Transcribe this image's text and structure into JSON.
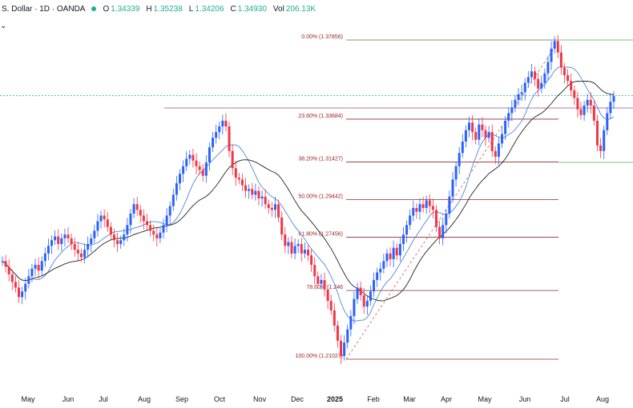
{
  "header": {
    "title": "S. Dollar · 1D · OANDA",
    "open_label": "O",
    "open_value": "1.34339",
    "high_label": "H",
    "high_value": "1.35238",
    "low_label": "L",
    "low_value": "1.34206",
    "close_label": "C",
    "close_value": "1.34930",
    "vol_label": "Vol",
    "vol_value": "206.13K",
    "collapse_icon": "chevron-down-icon"
  },
  "chart_data": {
    "type": "candlestick",
    "x_axis_labels": [
      "May",
      "Jun",
      "Jul",
      "Aug",
      "Sep",
      "Oct",
      "Nov",
      "Dec",
      "2025",
      "Feb",
      "Mar",
      "Apr",
      "May",
      "Jun",
      "Jul",
      "Aug"
    ],
    "fib_levels": [
      {
        "label": "0.00% (1.37856)",
        "value": 1.37856
      },
      {
        "label": "23.60% (1.33684)",
        "value": 1.33684
      },
      {
        "label": "38.20% (1.31427)",
        "value": 1.31427
      },
      {
        "label": "50.00% (1.29442)",
        "value": 1.29442
      },
      {
        "label": "61.80% (1.27456)",
        "value": 1.27456
      },
      {
        "label": "78.60% (1.246",
        "value": 1.2465
      },
      {
        "label": "100.00% (1.21027)",
        "value": 1.21027
      }
    ],
    "price_line": 1.3493,
    "close_series": [
      1.262,
      1.259,
      1.255,
      1.251,
      1.248,
      1.243,
      1.246,
      1.25,
      1.254,
      1.258,
      1.26,
      1.257,
      1.262,
      1.266,
      1.27,
      1.273,
      1.275,
      1.271,
      1.274,
      1.276,
      1.274,
      1.271,
      1.268,
      1.266,
      1.264,
      1.268,
      1.271,
      1.274,
      1.278,
      1.283,
      1.286,
      1.284,
      1.28,
      1.276,
      1.273,
      1.271,
      1.273,
      1.276,
      1.281,
      1.287,
      1.292,
      1.289,
      1.286,
      1.283,
      1.281,
      1.278,
      1.276,
      1.274,
      1.277,
      1.281,
      1.286,
      1.291,
      1.297,
      1.303,
      1.308,
      1.312,
      1.316,
      1.318,
      1.315,
      1.312,
      1.31,
      1.307,
      1.314,
      1.322,
      1.327,
      1.33,
      1.333,
      1.336,
      1.333,
      1.32,
      1.311,
      1.306,
      1.305,
      1.302,
      1.299,
      1.3,
      1.297,
      1.299,
      1.295,
      1.296,
      1.292,
      1.29,
      1.289,
      1.292,
      1.285,
      1.276,
      1.27,
      1.272,
      1.266,
      1.27,
      1.271,
      1.266,
      1.268,
      1.265,
      1.26,
      1.254,
      1.25,
      1.252,
      1.247,
      1.241,
      1.236,
      1.228,
      1.22,
      1.212,
      1.219,
      1.226,
      1.233,
      1.242,
      1.248,
      1.244,
      1.238,
      1.241,
      1.246,
      1.252,
      1.256,
      1.258,
      1.262,
      1.266,
      1.263,
      1.269,
      1.265,
      1.271,
      1.276,
      1.281,
      1.286,
      1.29,
      1.288,
      1.292,
      1.29,
      1.294,
      1.291,
      1.289,
      1.28,
      1.274,
      1.281,
      1.287,
      1.296,
      1.305,
      1.312,
      1.319,
      1.325,
      1.331,
      1.335,
      1.33,
      1.326,
      1.334,
      1.331,
      1.327,
      1.33,
      1.32,
      1.317,
      1.324,
      1.329,
      1.336,
      1.34,
      1.343,
      1.347,
      1.35,
      1.351,
      1.356,
      1.359,
      1.362,
      1.358,
      1.353,
      1.356,
      1.361,
      1.367,
      1.374,
      1.378,
      1.372,
      1.364,
      1.36,
      1.357,
      1.352,
      1.348,
      1.342,
      1.339,
      1.344,
      1.347,
      1.344,
      1.336,
      1.323,
      1.32,
      1.331,
      1.34,
      1.346,
      1.349
    ]
  }
}
